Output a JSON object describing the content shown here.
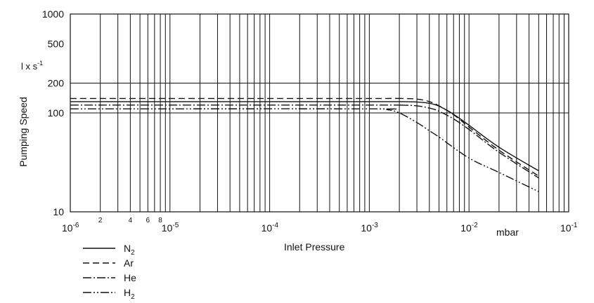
{
  "chart_data": {
    "type": "line",
    "title": "",
    "xlabel": "Inlet Pressure",
    "ylabel": "Pumping Speed",
    "yunit": "l x s",
    "yunit_exp": "-1",
    "xunit": "mbar",
    "x_scale": "log",
    "y_scale": "log",
    "xlim": [
      1e-06,
      0.1
    ],
    "ylim": [
      10,
      1000
    ],
    "grid": true,
    "legend_position": "bottom-left",
    "y_ticks": [
      {
        "value": 10,
        "label": "10"
      },
      {
        "value": 100,
        "label": "100"
      },
      {
        "value": 200,
        "label": "200"
      },
      {
        "value": 500,
        "label": "500"
      },
      {
        "value": 1000,
        "label": "1000"
      }
    ],
    "y_gridlines": [
      100,
      200
    ],
    "x_major_ticks": [
      {
        "value": 1e-06,
        "base": "10",
        "exp": "-6"
      },
      {
        "value": 1e-05,
        "base": "10",
        "exp": "-5"
      },
      {
        "value": 0.0001,
        "base": "10",
        "exp": "-4"
      },
      {
        "value": 0.001,
        "base": "10",
        "exp": "-3"
      },
      {
        "value": 0.01,
        "base": "10",
        "exp": "-2"
      },
      {
        "value": 0.1,
        "base": "10",
        "exp": "-1"
      }
    ],
    "x_minor_labels": [
      {
        "value": 2e-06,
        "label": "2"
      },
      {
        "value": 4e-06,
        "label": "4"
      },
      {
        "value": 6e-06,
        "label": "6"
      },
      {
        "value": 8e-06,
        "label": "8"
      }
    ],
    "series": [
      {
        "name": "N",
        "name_sub": "2",
        "dash": "",
        "x": [
          1e-06,
          0.001,
          0.002,
          0.003,
          0.004,
          0.005,
          0.007,
          0.01,
          0.02,
          0.05
        ],
        "y": [
          130,
          130,
          130,
          129,
          125,
          117,
          97,
          75,
          45,
          26
        ]
      },
      {
        "name": "Ar",
        "name_sub": "",
        "dash": "9,5",
        "x": [
          1e-06,
          0.001,
          0.002,
          0.003,
          0.004,
          0.005,
          0.007,
          0.01,
          0.02,
          0.05
        ],
        "y": [
          140,
          140,
          140,
          138,
          130,
          118,
          96,
          72,
          42,
          23
        ]
      },
      {
        "name": "He",
        "name_sub": "",
        "dash": "12,3,2,3",
        "x": [
          1e-06,
          0.001,
          0.002,
          0.003,
          0.004,
          0.005,
          0.007,
          0.01,
          0.02,
          0.05
        ],
        "y": [
          120,
          120,
          120,
          118,
          112,
          104,
          87,
          68,
          40,
          22
        ]
      },
      {
        "name": "H",
        "name_sub": "2",
        "dash": "12,3,2,3,2,3",
        "x": [
          1e-06,
          0.001,
          0.0015,
          0.002,
          0.003,
          0.004,
          0.005,
          0.01,
          0.02,
          0.05
        ],
        "y": [
          110,
          110,
          108,
          100,
          80,
          66,
          57,
          35,
          25,
          16
        ]
      }
    ]
  }
}
